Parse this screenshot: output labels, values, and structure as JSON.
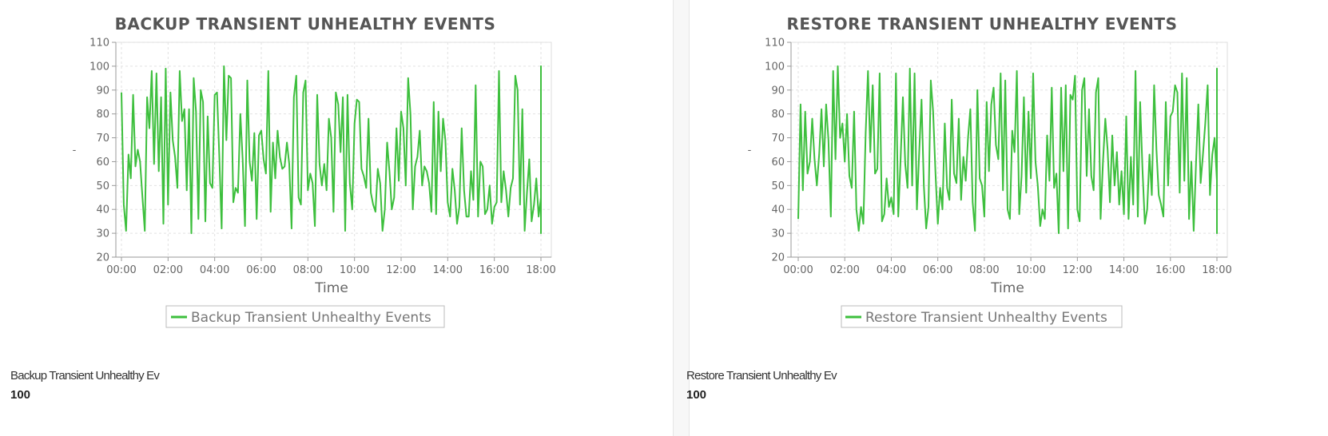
{
  "colors": {
    "series": "#3dbf3d",
    "grid": "#dddddd",
    "axis": "#999999"
  },
  "panels": [
    {
      "metric_label": "Backup Transient Unhealthy Ev",
      "metric_value": "100"
    },
    {
      "metric_label": "Restore Transient Unhealthy Ev",
      "metric_value": "100"
    }
  ],
  "chart_data": [
    {
      "type": "line",
      "title": "BACKUP TRANSIENT UNHEALTHY EVENTS",
      "xlabel": "Time",
      "ylabel": "-",
      "ylim": [
        20,
        110
      ],
      "yticks": [
        "20",
        "30",
        "40",
        "50",
        "60",
        "70",
        "80",
        "90",
        "100",
        "110"
      ],
      "xticks": [
        "00:00",
        "02:00",
        "04:00",
        "06:00",
        "08:00",
        "10:00",
        "12:00",
        "14:00",
        "16:00",
        "18:00"
      ],
      "xlim_hours": [
        0,
        18
      ],
      "grid": true,
      "legend": "bottom-center",
      "series": [
        {
          "name": "Backup Transient Unhealthy Events",
          "color": "#3dbf3d",
          "step_hours": 0.1,
          "values": [
            89,
            42,
            31,
            63,
            53,
            88,
            58,
            65,
            60,
            45,
            31,
            87,
            74,
            98,
            59,
            97,
            56,
            87,
            34,
            99,
            42,
            89,
            69,
            62,
            49,
            98,
            77,
            82,
            48,
            82,
            30,
            95,
            81,
            36,
            90,
            85,
            35,
            79,
            51,
            49,
            88,
            89,
            62,
            32,
            100,
            69,
            96,
            95,
            43,
            49,
            47,
            80,
            61,
            33,
            94,
            60,
            52,
            72,
            36,
            71,
            73,
            61,
            55,
            98,
            39,
            68,
            53,
            73,
            62,
            57,
            58,
            68,
            59,
            32,
            87,
            96,
            45,
            42,
            89,
            94,
            48,
            55,
            51,
            33,
            88,
            59,
            50,
            59,
            48,
            78,
            70,
            39,
            89,
            84,
            64,
            87,
            31,
            88,
            51,
            40,
            76,
            86,
            85,
            57,
            54,
            49,
            78,
            47,
            42,
            39,
            57,
            51,
            31,
            40,
            68,
            56,
            40,
            45,
            74,
            52,
            81,
            74,
            50,
            95,
            80,
            40,
            58,
            62,
            73,
            50,
            58,
            56,
            51,
            39,
            85,
            38,
            81,
            56,
            78,
            69,
            43,
            37,
            57,
            48,
            34,
            41,
            74,
            48,
            37,
            37,
            56,
            44,
            92,
            37,
            60,
            58,
            38,
            40,
            50,
            34,
            41,
            43,
            98,
            43,
            56,
            48,
            37,
            49,
            53,
            96,
            90,
            42,
            82,
            31,
            47,
            61,
            35,
            42,
            53,
            37,
            45,
            46,
            30,
            46,
            61,
            31,
            59,
            99,
            42,
            93,
            82,
            84,
            65,
            40,
            97,
            91,
            43,
            45,
            61,
            45,
            37,
            80,
            36,
            100,
            48,
            38,
            83,
            45,
            41,
            94,
            84,
            100,
            87
          ]
        }
      ]
    },
    {
      "type": "line",
      "title": "RESTORE TRANSIENT UNHEALTHY EVENTS",
      "xlabel": "Time",
      "ylabel": "-",
      "ylim": [
        20,
        110
      ],
      "yticks": [
        "20",
        "30",
        "40",
        "50",
        "60",
        "70",
        "80",
        "90",
        "100",
        "110"
      ],
      "xticks": [
        "00:00",
        "02:00",
        "04:00",
        "06:00",
        "08:00",
        "10:00",
        "12:00",
        "14:00",
        "16:00",
        "18:00"
      ],
      "xlim_hours": [
        0,
        18
      ],
      "grid": true,
      "legend": "bottom-center",
      "series": [
        {
          "name": "Restore Transient Unhealthy Events",
          "color": "#3dbf3d",
          "step_hours": 0.1,
          "values": [
            36,
            84,
            48,
            81,
            55,
            60,
            78,
            61,
            50,
            63,
            82,
            58,
            84,
            69,
            37,
            98,
            61,
            100,
            70,
            76,
            60,
            80,
            54,
            49,
            81,
            40,
            31,
            41,
            34,
            72,
            98,
            64,
            92,
            55,
            57,
            97,
            35,
            38,
            53,
            41,
            45,
            38,
            97,
            37,
            61,
            87,
            59,
            49,
            99,
            50,
            97,
            40,
            64,
            86,
            50,
            32,
            41,
            94,
            81,
            55,
            34,
            49,
            40,
            76,
            49,
            44,
            86,
            55,
            51,
            78,
            44,
            62,
            52,
            70,
            82,
            43,
            31,
            90,
            53,
            50,
            37,
            85,
            56,
            84,
            91,
            67,
            61,
            97,
            48,
            94,
            40,
            36,
            73,
            64,
            98,
            38,
            54,
            87,
            47,
            81,
            53,
            97,
            60,
            50,
            33,
            40,
            36,
            71,
            52,
            91,
            49,
            55,
            30,
            91,
            56,
            92,
            32,
            88,
            86,
            96,
            40,
            35,
            90,
            95,
            54,
            82,
            54,
            48,
            89,
            95,
            36,
            60,
            78,
            65,
            43,
            71,
            50,
            64,
            42,
            56,
            38,
            79,
            36,
            62,
            42,
            98,
            37,
            85,
            57,
            34,
            40,
            63,
            46,
            92,
            65,
            46,
            42,
            37,
            85,
            50,
            79,
            81,
            92,
            89,
            47,
            97,
            52,
            95,
            36,
            60,
            31,
            59,
            84,
            51,
            63,
            76,
            92,
            46,
            63,
            70,
            52,
            98,
            47,
            59,
            43,
            85,
            57,
            65,
            40,
            67,
            39,
            60,
            46,
            58,
            98,
            43,
            42,
            55,
            30,
            67,
            45,
            63,
            37,
            96,
            45,
            91,
            37,
            65,
            51,
            40,
            66,
            84,
            52,
            38,
            99,
            41
          ]
        }
      ]
    }
  ]
}
